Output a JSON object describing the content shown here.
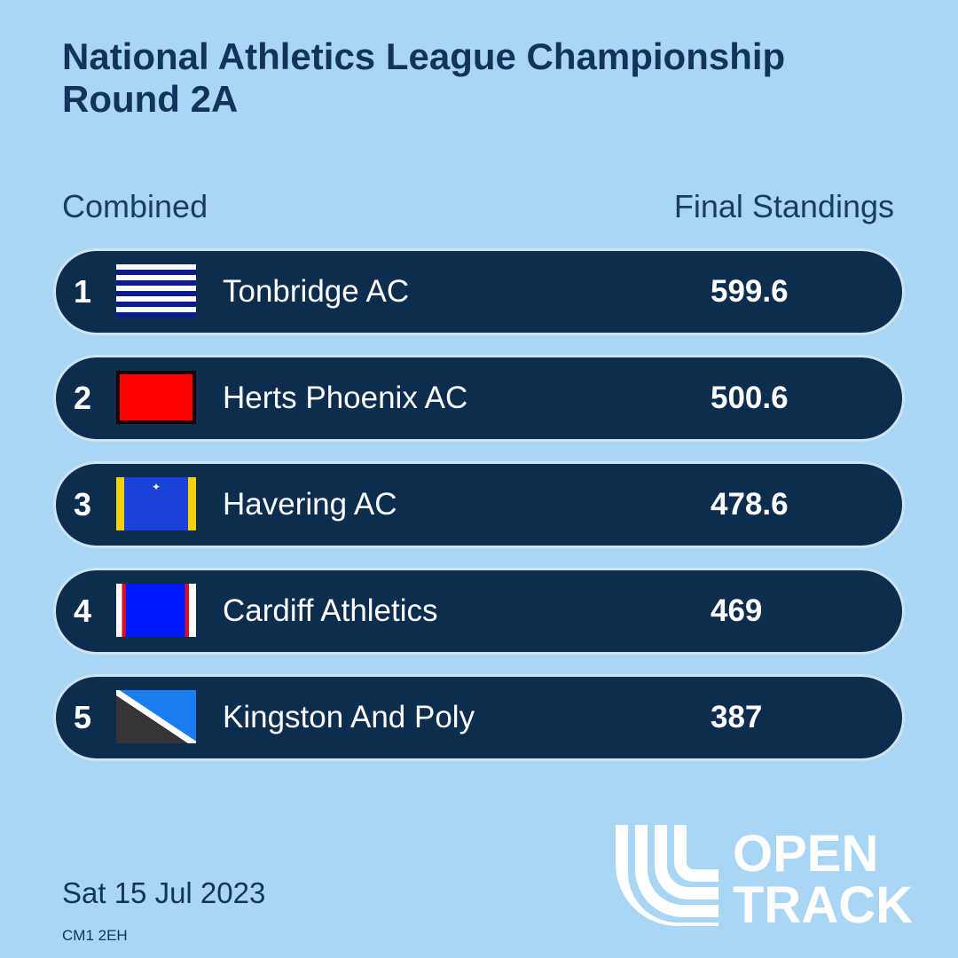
{
  "title": {
    "line1": "National Athletics League Championship",
    "line2": "Round 2A"
  },
  "subheader": {
    "left": "Combined",
    "right": "Final Standings"
  },
  "standings": [
    {
      "rank": "1",
      "club": "Tonbridge AC",
      "score": "599.6",
      "flag": "blue-white-stripes"
    },
    {
      "rank": "2",
      "club": "Herts Phoenix AC",
      "score": "500.6",
      "flag": "red"
    },
    {
      "rank": "3",
      "club": "Havering AC",
      "score": "478.6",
      "flag": "havering-vest"
    },
    {
      "rank": "4",
      "club": "Cardiff Athletics",
      "score": "469",
      "flag": "blue-red-white"
    },
    {
      "rank": "5",
      "club": "Kingston And Poly",
      "score": "387",
      "flag": "blue-white-black-diagonal"
    }
  ],
  "footer": {
    "date": "Sat 15 Jul 2023",
    "postcode": "CM1 2EH"
  },
  "logo": {
    "line1": "OPEN",
    "line2": "TRACK",
    "icon": "opentrack-track-icon"
  },
  "colors": {
    "background": "#a9d6f5",
    "row": "#0d2d4e",
    "title": "#12345a"
  }
}
